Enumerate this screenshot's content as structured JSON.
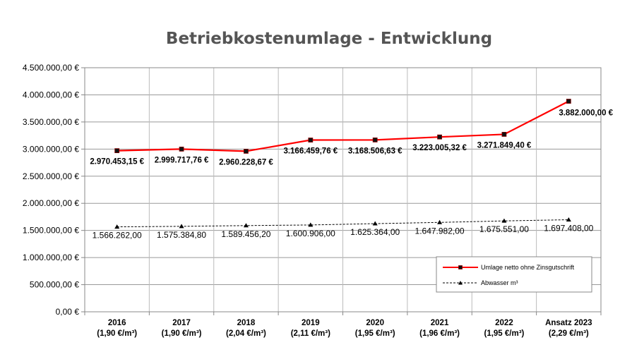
{
  "chart_data": {
    "type": "line",
    "title": "Betriebkostenumlage - Entwicklung",
    "categories": [
      "2016",
      "2017",
      "2018",
      "2019",
      "2020",
      "2021",
      "2022",
      "Ansatz 2023"
    ],
    "category_sublabels": [
      "(1,90 €/m³)",
      "(1,90 €/m³)",
      "(2,04 €/m³)",
      "(2,11 €/m³)",
      "(1,95 €/m³)",
      "(1,96 €/m³)",
      "(1,95 €/m³)",
      "(2,29 €/m³)"
    ],
    "ylim": [
      0,
      4500000
    ],
    "ytick_values": [
      0,
      500000,
      1000000,
      1500000,
      2000000,
      2500000,
      3000000,
      3500000,
      4000000,
      4500000
    ],
    "ytick_labels": [
      "0,00 €",
      "500.000,00 €",
      "1.000.000,00 €",
      "1.500.000,00 €",
      "2.000.000,00 €",
      "2.500.000,00 €",
      "3.000.000,00 €",
      "3.500.000,00 €",
      "4.000.000,00 €",
      "4.500.000,00 €"
    ],
    "grid": true,
    "legend_position": "bottom-right",
    "series": [
      {
        "name": "Umlage netto ohne Zinsgutschrift",
        "color": "#ff0000",
        "marker": "square",
        "style": "solid",
        "values": [
          2970453.15,
          2999717.76,
          2960228.67,
          3166459.76,
          3168506.63,
          3223005.32,
          3271849.4,
          3882000.0
        ],
        "data_labels": [
          "2.970.453,15 €",
          "2.999.717,76 €",
          "2.960.228,67 €",
          "3.166.459,76 €",
          "3.168.506,63 €",
          "3.223.005,32 €",
          "3.271.849,40 €",
          "3.882.000,00 €"
        ]
      },
      {
        "name": "Abwasser m³",
        "color": "#000000",
        "marker": "triangle",
        "style": "dashed",
        "values": [
          1566262,
          1575384.8,
          1589456.2,
          1600906,
          1625364,
          1647982,
          1675551,
          1697408
        ],
        "data_labels": [
          "1.566.262,00",
          "1.575.384,80",
          "1.589.456,20",
          "1.600.906,00",
          "1.625.364,00",
          "1.647.982,00",
          "1.675.551,00",
          "1.697.408,00"
        ]
      }
    ]
  }
}
